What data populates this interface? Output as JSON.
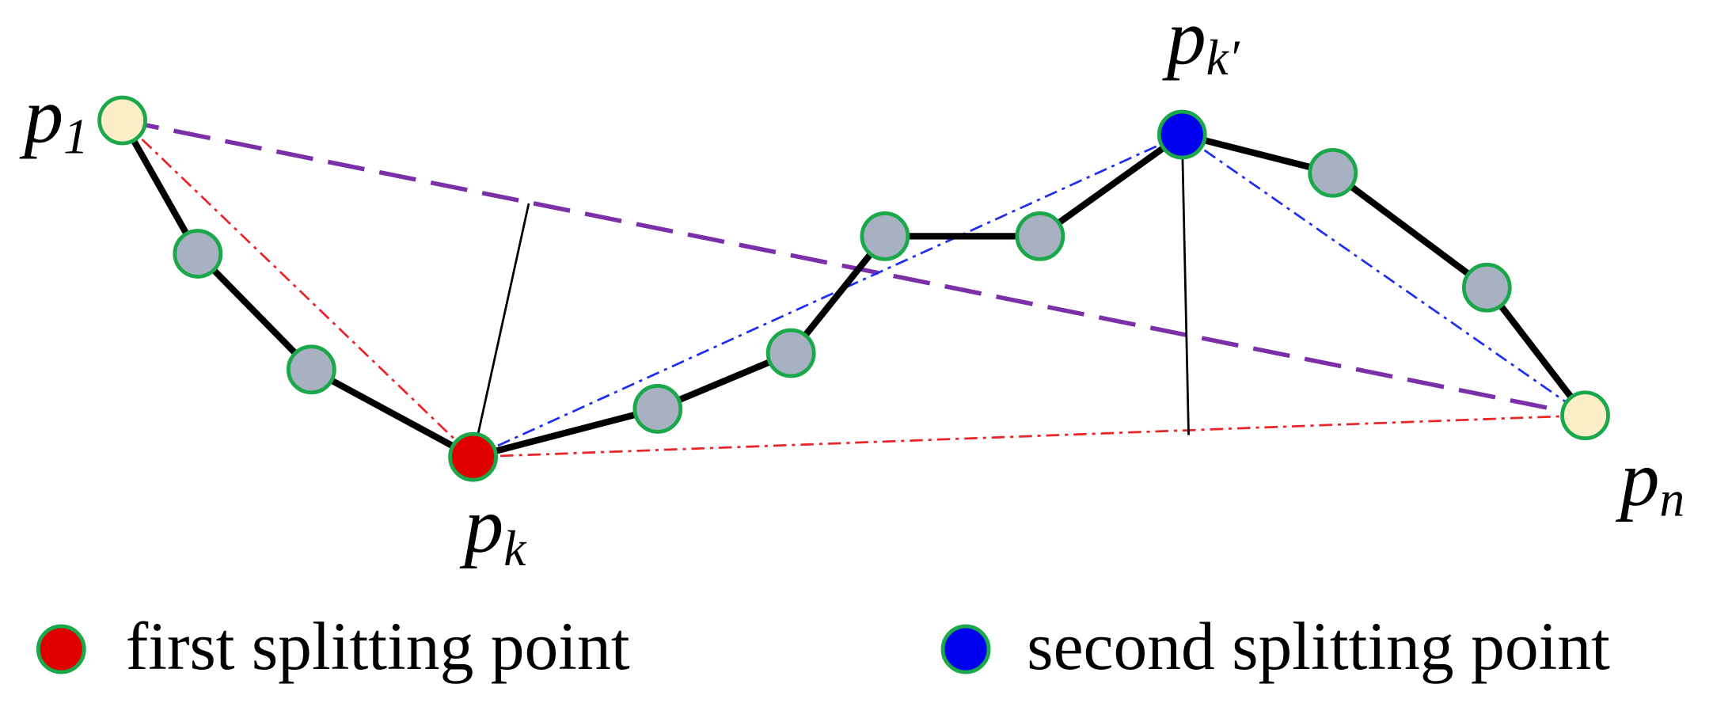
{
  "labels": [
    {
      "base": "p",
      "sub": "1"
    },
    {
      "base": "p",
      "sub": "k"
    },
    {
      "base": "p",
      "sub": "k′"
    },
    {
      "base": "p",
      "sub": "n"
    }
  ],
  "legend": [
    "first splitting point",
    "second splitting point"
  ]
}
